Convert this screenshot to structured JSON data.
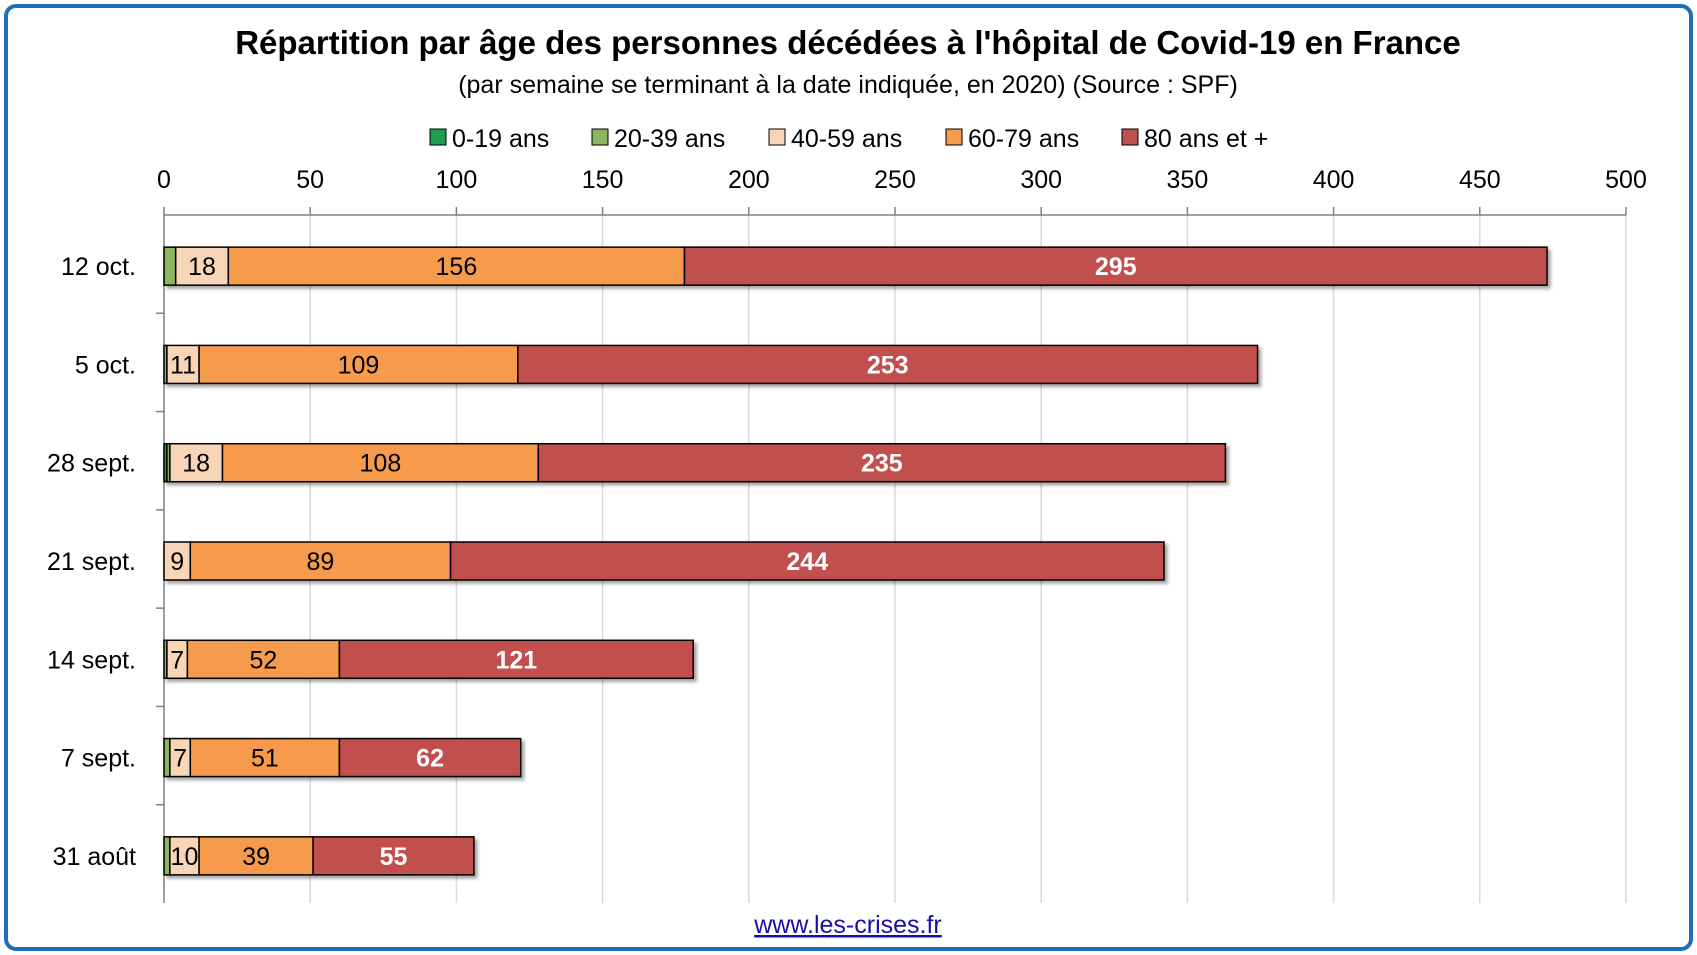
{
  "colors": {
    "0-19 ans": "#1e9e50",
    "20-39 ans": "#8db55f",
    "40-59 ans": "#f9d5b8",
    "60-79 ans": "#f69a4c",
    "80 ans et +": "#c0504d",
    "frame": "#1f6fb8"
  },
  "chart_data": {
    "type": "bar",
    "orientation": "horizontal",
    "stacked": true,
    "title": "Répartition par âge des personnes décédées à l'hôpital de Covid-19 en France",
    "subtitle": "(par semaine se terminant à la date indiquée, en 2020) (Source : SPF)",
    "xlim": [
      0,
      500
    ],
    "xticks": [
      "0",
      "50",
      "100",
      "150",
      "200",
      "250",
      "300",
      "350",
      "400",
      "450",
      "500"
    ],
    "grid": true,
    "legend_position": "top",
    "categories": [
      "12 oct.",
      "5 oct.",
      "28 sept.",
      "21 sept.",
      "14 sept.",
      "7 sept.",
      "31 août"
    ],
    "series": [
      {
        "name": "0-19 ans",
        "values": [
          0,
          0,
          1,
          0,
          0,
          0,
          0
        ],
        "labels": [
          "",
          "",
          "",
          "",
          "",
          "",
          ""
        ]
      },
      {
        "name": "20-39 ans",
        "values": [
          4,
          1,
          1,
          0,
          1,
          2,
          2
        ],
        "labels": [
          "",
          "",
          "",
          "",
          "",
          "",
          ""
        ]
      },
      {
        "name": "40-59 ans",
        "values": [
          18,
          11,
          18,
          9,
          7,
          7,
          10
        ],
        "labels": [
          "18",
          "11",
          "18",
          "9",
          "7",
          "7",
          "10"
        ]
      },
      {
        "name": "60-79 ans",
        "values": [
          156,
          109,
          108,
          89,
          52,
          51,
          39
        ],
        "labels": [
          "156",
          "109",
          "108",
          "89",
          "52",
          "51",
          "39"
        ]
      },
      {
        "name": "80 ans et +",
        "values": [
          295,
          253,
          235,
          244,
          121,
          62,
          55
        ],
        "labels": [
          "295",
          "253",
          "235",
          "244",
          "121",
          "62",
          "55"
        ]
      }
    ]
  },
  "footer": {
    "source_link": "www.les-crises.fr"
  }
}
